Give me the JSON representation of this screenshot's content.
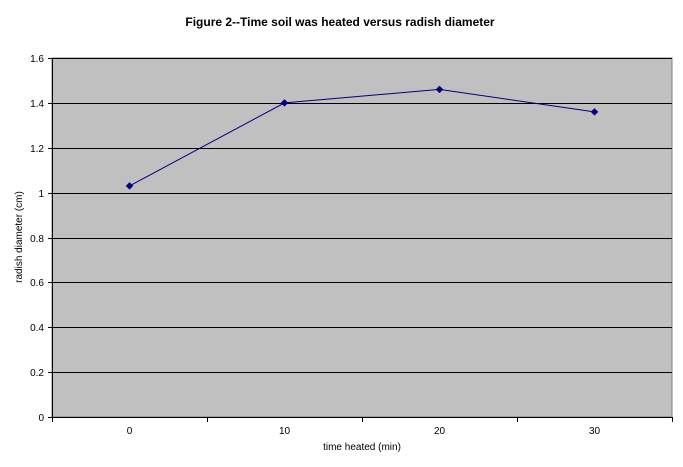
{
  "chart_data": {
    "type": "line",
    "title": "Figure 2--Time soil was heated versus radish diameter",
    "xlabel": "time heated (min)",
    "ylabel": "radish diameter (cm)",
    "categories": [
      "0",
      "10",
      "20",
      "30"
    ],
    "series": [
      {
        "values": [
          1.03,
          1.4,
          1.46,
          1.36
        ],
        "color": "#000080",
        "marker": "diamond"
      }
    ],
    "ylim": [
      0,
      1.6
    ],
    "yticks": [
      "0",
      "0.2",
      "0.4",
      "0.6",
      "0.8",
      "1",
      "1.2",
      "1.4",
      "1.6"
    ],
    "grid": "horizontal",
    "plot_background": "#c0c0c0",
    "legend": "none"
  }
}
